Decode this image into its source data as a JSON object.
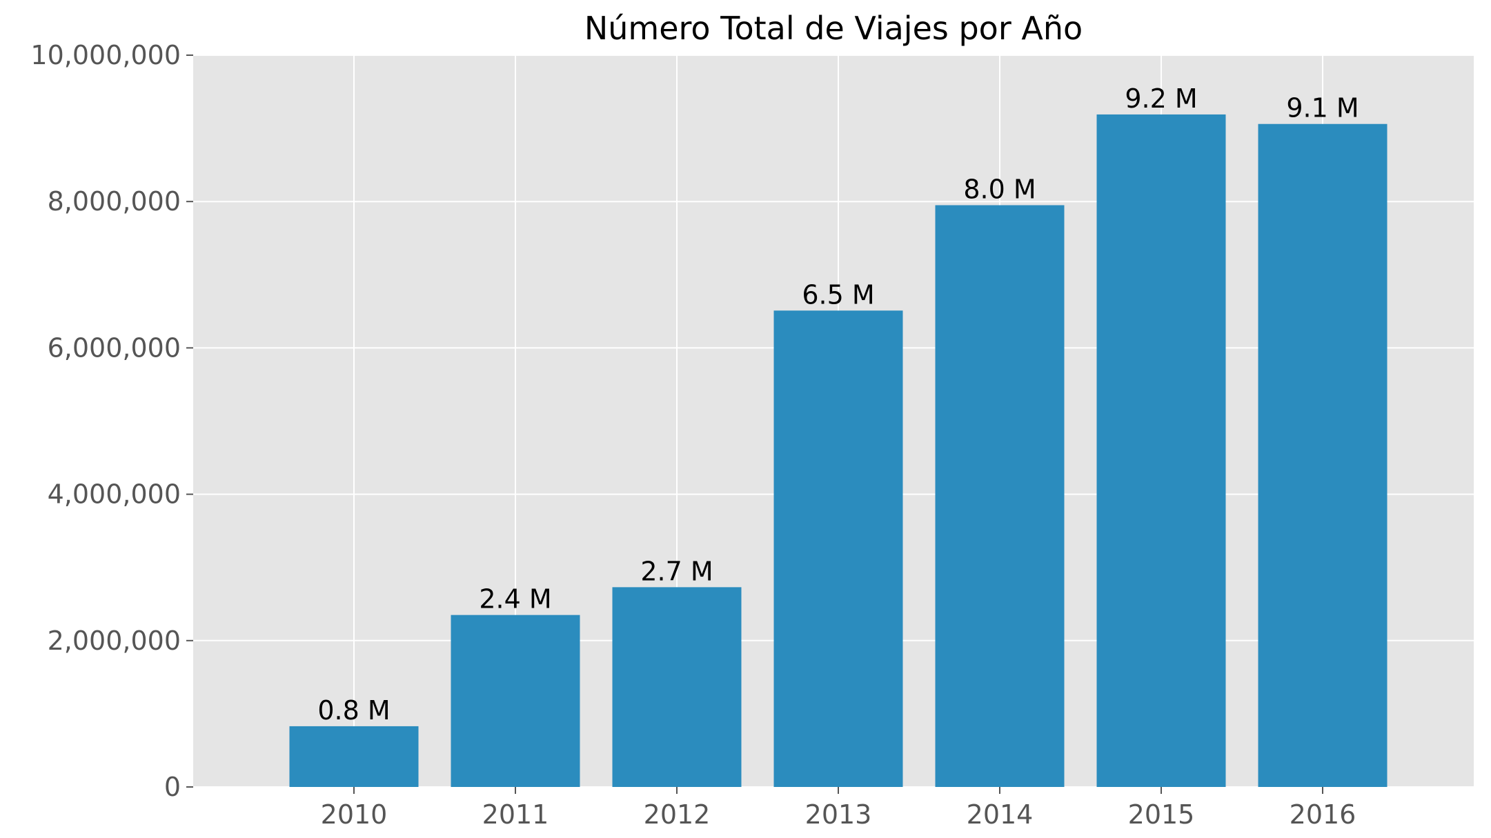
{
  "chart_data": {
    "type": "bar",
    "title": "Número Total de Viajes por Año",
    "xlabel": "",
    "ylabel": "",
    "categories": [
      "2010",
      "2011",
      "2012",
      "2013",
      "2014",
      "2015",
      "2016"
    ],
    "values": [
      830000,
      2350000,
      2730000,
      6510000,
      7950000,
      9190000,
      9060000
    ],
    "data_labels": [
      "0.8 M",
      "2.4 M",
      "2.7 M",
      "6.5 M",
      "8.0 M",
      "9.2 M",
      "9.1 M"
    ],
    "ylim": [
      0,
      10000000
    ],
    "yticks": [
      0,
      2000000,
      4000000,
      6000000,
      8000000,
      10000000
    ],
    "ytick_labels": [
      "0",
      "2,000,000",
      "4,000,000",
      "6,000,000",
      "8,000,000",
      "10,000,000"
    ],
    "grid": true,
    "legend": "none",
    "colors": {
      "bar": "#2b8cbe",
      "plot_background": "#e5e5e5",
      "grid": "#ffffff",
      "tick_text": "#555555",
      "text": "#000000"
    }
  }
}
